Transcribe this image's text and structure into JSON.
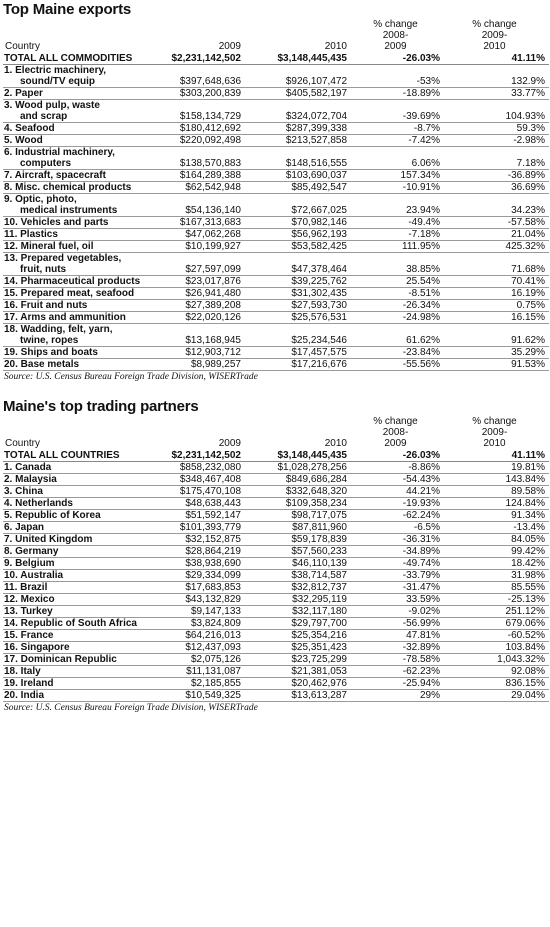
{
  "exports": {
    "title": "Top Maine exports",
    "headers": [
      "Country",
      "2009",
      "2010",
      "% change\n2008-\n2009",
      "% change\n2009-\n2010"
    ],
    "total": [
      "TOTAL ALL COMMODITIES",
      "$2,231,142,502",
      "$3,148,445,435",
      "-26.03%",
      "41.11%"
    ],
    "rows": [
      [
        [
          "1.  Electric machinery,",
          "sound/TV equip"
        ],
        "$397,648,636",
        "$926,107,472",
        "-53%",
        "132.9%"
      ],
      [
        [
          "2.  Paper"
        ],
        "$303,200,839",
        "$405,582,197",
        "-18.89%",
        "33.77%"
      ],
      [
        [
          "3.  Wood pulp, waste",
          "and scrap"
        ],
        "$158,134,729",
        "$324,072,704",
        "-39.69%",
        "104.93%"
      ],
      [
        [
          "4.  Seafood"
        ],
        "$180,412,692",
        "$287,399,338",
        "-8.7%",
        "59.3%"
      ],
      [
        [
          "5.  Wood"
        ],
        "$220,092,498",
        "$213,527,858",
        "-7.42%",
        "-2.98%"
      ],
      [
        [
          "6.  Industrial machinery,",
          "computers"
        ],
        "$138,570,883",
        "$148,516,555",
        "6.06%",
        "7.18%"
      ],
      [
        [
          "7.  Aircraft, spacecraft"
        ],
        "$164,289,388",
        "$103,690,037",
        "157.34%",
        "-36.89%"
      ],
      [
        [
          "8.  Misc. chemical products"
        ],
        "$62,542,948",
        "$85,492,547",
        "-10.91%",
        "36.69%"
      ],
      [
        [
          "9.  Optic, photo,",
          "medical instruments"
        ],
        "$54,136,140",
        "$72,667,025",
        "23.94%",
        "34.23%"
      ],
      [
        [
          "10. Vehicles and parts"
        ],
        "$167,313,683",
        "$70,982,146",
        "-49.4%",
        "-57.58%"
      ],
      [
        [
          "11. Plastics"
        ],
        "$47,062,268",
        "$56,962,193",
        "-7.18%",
        "21.04%"
      ],
      [
        [
          "12. Mineral fuel, oil"
        ],
        "$10,199,927",
        "$53,582,425",
        "111.95%",
        "425.32%"
      ],
      [
        [
          "13. Prepared vegetables,",
          "fruit, nuts"
        ],
        "$27,597,099",
        "$47,378,464",
        "38.85%",
        "71.68%"
      ],
      [
        [
          "14. Pharmaceutical products"
        ],
        "$23,017,876",
        "$39,225,762",
        "25.54%",
        "70.41%"
      ],
      [
        [
          "15. Prepared meat, seafood"
        ],
        "$26,941,480",
        "$31,302,435",
        "-8.51%",
        "16.19%"
      ],
      [
        [
          "16. Fruit and nuts"
        ],
        "$27,389,208",
        "$27,593,730",
        "-26.34%",
        "0.75%"
      ],
      [
        [
          "17. Arms and ammunition"
        ],
        "$22,020,126",
        "$25,576,531",
        "-24.98%",
        "16.15%"
      ],
      [
        [
          "18. Wadding, felt, yarn,",
          "twine, ropes"
        ],
        "$13,168,945",
        "$25,234,546",
        "61.62%",
        "91.62%"
      ],
      [
        [
          "19. Ships and boats"
        ],
        "$12,903,712",
        "$17,457,575",
        "-23.84%",
        "35.29%"
      ],
      [
        [
          "20. Base metals"
        ],
        "$8,989,257",
        "$17,216,676",
        "-55.56%",
        "91.53%"
      ]
    ],
    "source": "Source: U.S. Census Bureau Foreign Trade Division, WISERTrade"
  },
  "partners": {
    "title": "Maine's top trading partners",
    "headers": [
      "Country",
      "2009",
      "2010",
      "% change\n2008-\n2009",
      "% change\n2009-\n2010"
    ],
    "total": [
      "TOTAL ALL COUNTRIES",
      "$2,231,142,502",
      "$3,148,445,435",
      "-26.03%",
      "41.11%"
    ],
    "rows": [
      [
        [
          "1.  Canada"
        ],
        "$858,232,080",
        "$1,028,278,256",
        "-8.86%",
        "19.81%"
      ],
      [
        [
          "2.  Malaysia"
        ],
        "$348,467,408",
        "$849,686,284",
        "-54.43%",
        "143.84%"
      ],
      [
        [
          "3.  China"
        ],
        "$175,470,108",
        "$332,648,320",
        "44.21%",
        "89.58%"
      ],
      [
        [
          "4.  Netherlands"
        ],
        "$48,638,443",
        "$109,358,234",
        "-19.93%",
        "124.84%"
      ],
      [
        [
          "5.  Republic of Korea"
        ],
        "$51,592,147",
        "$98,717,075",
        "-62.24%",
        "91.34%"
      ],
      [
        [
          "6.  Japan"
        ],
        "$101,393,779",
        "$87,811,960",
        "-6.5%",
        "-13.4%"
      ],
      [
        [
          "7.  United Kingdom"
        ],
        "$32,152,875",
        "$59,178,839",
        "-36.31%",
        "84.05%"
      ],
      [
        [
          "8.  Germany"
        ],
        "$28,864,219",
        "$57,560,233",
        "-34.89%",
        "99.42%"
      ],
      [
        [
          "9.  Belgium"
        ],
        "$38,938,690",
        "$46,110,139",
        "-49.74%",
        "18.42%"
      ],
      [
        [
          "10. Australia"
        ],
        "$29,334,099",
        "$38,714,587",
        "-33.79%",
        "31.98%"
      ],
      [
        [
          "11. Brazil"
        ],
        "$17,683,853",
        "$32,812,737",
        "-31.47%",
        "85.55%"
      ],
      [
        [
          "12. Mexico"
        ],
        "$43,132,829",
        "$32,295,119",
        "33.59%",
        "-25.13%"
      ],
      [
        [
          "13. Turkey"
        ],
        "$9,147,133",
        "$32,117,180",
        "-9.02%",
        "251.12%"
      ],
      [
        [
          "14. Republic of South Africa"
        ],
        "$3,824,809",
        "$29,797,700",
        "-56.99%",
        "679.06%"
      ],
      [
        [
          "15. France"
        ],
        "$64,216,013",
        "$25,354,216",
        "47.81%",
        "-60.52%"
      ],
      [
        [
          "16. Singapore"
        ],
        "$12,437,093",
        "$25,351,423",
        "-32.89%",
        "103.84%"
      ],
      [
        [
          "17. Dominican Republic"
        ],
        "$2,075,126",
        "$23,725,299",
        "-78.58%",
        "1,043.32%"
      ],
      [
        [
          "18. Italy"
        ],
        "$11,131,087",
        "$21,381,053",
        "-62.23%",
        "92.08%"
      ],
      [
        [
          "19. Ireland"
        ],
        "$2,185,855",
        "$20,462,976",
        "-25.94%",
        "836.15%"
      ],
      [
        [
          "20. India"
        ],
        "$10,549,325",
        "$13,613,287",
        "29%",
        "29.04%"
      ]
    ],
    "source": "Source: U.S. Census Bureau Foreign Trade Division, WISERTrade"
  }
}
